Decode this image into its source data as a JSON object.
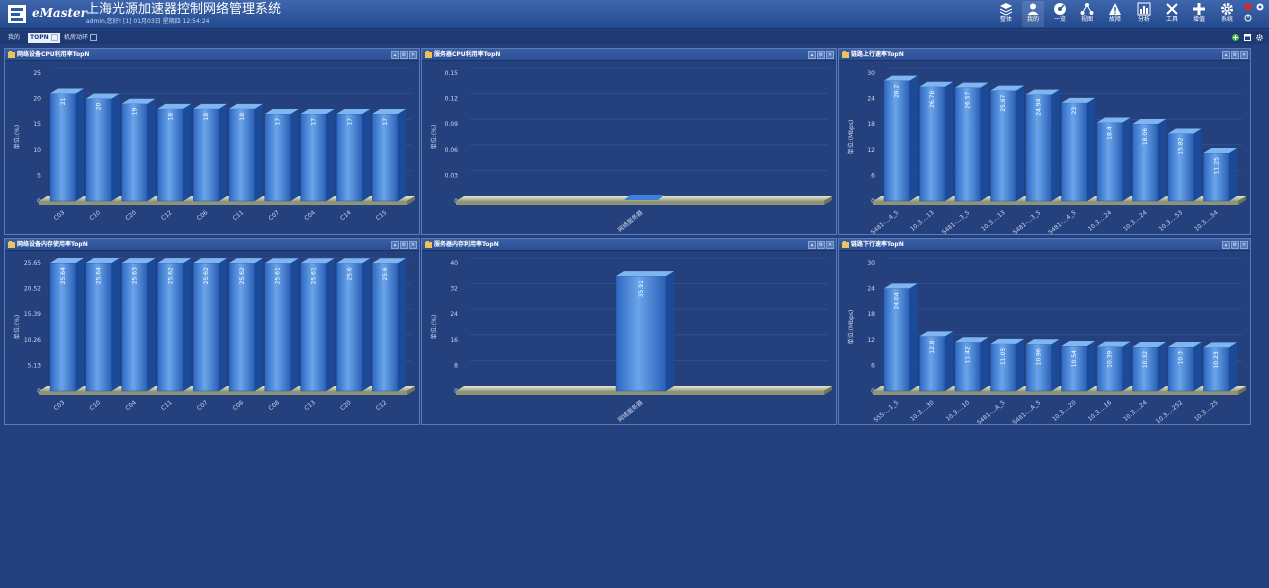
{
  "header": {
    "brand": "eMaster",
    "title": "上海光源加速器控制网络管理系统",
    "user_info": "admin,您好! [1] 01月03日 星期四 12:54:24",
    "nav": [
      {
        "label": "整体",
        "icon": "layers-icon"
      },
      {
        "label": "我的",
        "icon": "user-icon"
      },
      {
        "label": "一览",
        "icon": "dashboard-icon"
      },
      {
        "label": "视图",
        "icon": "topology-icon"
      },
      {
        "label": "故障",
        "icon": "warning-icon"
      },
      {
        "label": "分析",
        "icon": "analysis-icon"
      },
      {
        "label": "工具",
        "icon": "tools-icon"
      },
      {
        "label": "增值",
        "icon": "plus-icon"
      },
      {
        "label": "系统",
        "icon": "gear-icon"
      }
    ]
  },
  "tabs": [
    {
      "label": "我的"
    },
    {
      "label": "TOPN"
    },
    {
      "label": "机房动环"
    }
  ],
  "panels": [
    {
      "title": "网络设备CPU利用率TopN",
      "chart_data": {
        "type": "bar",
        "ylabel": "单位:(%)",
        "yticks": [
          "0",
          "5",
          "10",
          "15",
          "20",
          "25"
        ],
        "ylim": [
          0,
          25
        ],
        "categories": [
          "C03",
          "C10",
          "C20",
          "C12",
          "C06",
          "C11",
          "C07",
          "C04",
          "C14",
          "C15"
        ],
        "values": [
          21,
          20,
          19,
          18,
          18,
          18,
          17,
          17,
          17,
          17
        ],
        "value_labels": [
          "21",
          "20",
          "19",
          "18",
          "18",
          "18",
          "17",
          "17",
          "17",
          "17"
        ]
      }
    },
    {
      "title": "服务器CPU利用率TopN",
      "chart_data": {
        "type": "bar",
        "ylabel": "单位:(%)",
        "yticks": [
          "0",
          "0.03",
          "0.06",
          "0.09",
          "0.12",
          "0.15"
        ],
        "ylim": [
          0,
          0.15
        ],
        "categories": [
          "网络服务器"
        ],
        "values": [
          0
        ],
        "value_labels": [
          "0"
        ]
      }
    },
    {
      "title": "链路上行速率TopN",
      "chart_data": {
        "type": "bar",
        "ylabel": "单位:(Mbps)",
        "yticks": [
          "0",
          "6",
          "12",
          "18",
          "24",
          "30"
        ],
        "ylim": [
          0,
          30
        ],
        "categories": [
          "S481-...4_5",
          "10.3....13",
          "S481-...3_5",
          "10.3....13",
          "S481-...3_5",
          "S481-...4_5",
          "10.3....24",
          "10.3....24",
          "10.3....53",
          "10.3....54"
        ],
        "values": [
          28.2,
          26.78,
          26.57,
          25.87,
          24.94,
          23,
          18.4,
          18.06,
          15.82,
          11.25
        ],
        "value_labels": [
          "28.2",
          "26.78",
          "26.57",
          "25.87",
          "24.94",
          "23",
          "18.4",
          "18.06",
          "15.82",
          "11.25"
        ]
      }
    },
    {
      "title": "网络设备内存使用率TopN",
      "chart_data": {
        "type": "bar",
        "ylabel": "单位:(%)",
        "yticks": [
          "0",
          "5.13",
          "10.26",
          "15.39",
          "20.52",
          "25.65"
        ],
        "ylim": [
          0,
          25.65
        ],
        "categories": [
          "C03",
          "C10",
          "C04",
          "C11",
          "C07",
          "C06",
          "C08",
          "C13",
          "C20",
          "C12"
        ],
        "values": [
          25.64,
          25.64,
          25.63,
          25.62,
          25.62,
          25.62,
          25.61,
          25.61,
          25.6,
          25.6
        ],
        "value_labels": [
          "25.64",
          "25.64",
          "25.63",
          "25.62",
          "25.62",
          "25.62",
          "25.61",
          "25.61",
          "25.6",
          "25.6"
        ]
      }
    },
    {
      "title": "服务器内存利用率TopN",
      "chart_data": {
        "type": "bar",
        "ylabel": "单位:(%)",
        "yticks": [
          "0",
          "8",
          "16",
          "24",
          "32",
          "40"
        ],
        "ylim": [
          0,
          40
        ],
        "categories": [
          "网络服务器"
        ],
        "values": [
          35.91
        ],
        "value_labels": [
          "35.91"
        ]
      }
    },
    {
      "title": "链路下行速率TopN",
      "chart_data": {
        "type": "bar",
        "ylabel": "单位:(Mbps)",
        "yticks": [
          "0",
          "6",
          "12",
          "18",
          "24",
          "30"
        ],
        "ylim": [
          0,
          30
        ],
        "categories": [
          "S55-...1_5",
          "10.3....30",
          "10.3....10",
          "S481-...A_5",
          "S481-...A_5",
          "10.3....20",
          "10.3....16",
          "10.3....24",
          "10.3....252",
          "10.3....25"
        ],
        "values": [
          24.04,
          12.8,
          11.42,
          11.05,
          10.96,
          10.54,
          10.39,
          10.32,
          10.3,
          10.23
        ],
        "value_labels": [
          "24.04",
          "12.8",
          "11.42",
          "11.05",
          "10.96",
          "10.54",
          "10.39",
          "10.32",
          "10.3",
          "10.23"
        ]
      }
    }
  ],
  "colors": {
    "accent": "#3f7fd6",
    "background": "#23407d",
    "bar_top": "#7fb6f2",
    "bar_side": "#1a4a98"
  }
}
